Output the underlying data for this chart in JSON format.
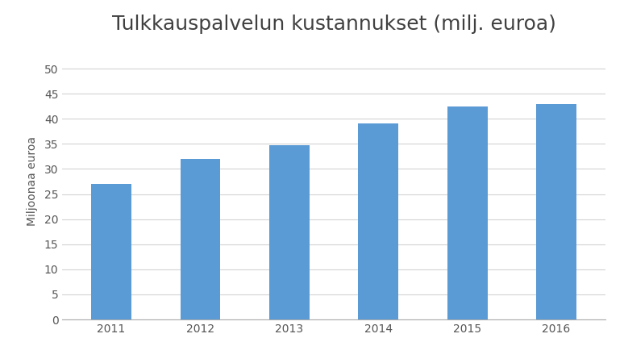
{
  "title": "Tulkkauspalvelun kustannukset (milj. euroa)",
  "ylabel": "Miljoonaa euroa",
  "categories": [
    "2011",
    "2012",
    "2013",
    "2014",
    "2015",
    "2016"
  ],
  "values": [
    27.0,
    32.0,
    34.7,
    39.0,
    42.5,
    43.0
  ],
  "bar_color": "#5B9BD5",
  "ylim": [
    0,
    55
  ],
  "yticks": [
    0,
    5,
    10,
    15,
    20,
    25,
    30,
    35,
    40,
    45,
    50
  ],
  "background_color": "#ffffff",
  "grid_color": "#d3d3d3",
  "title_fontsize": 18,
  "axis_label_fontsize": 10,
  "tick_fontsize": 10,
  "bar_width": 0.45
}
